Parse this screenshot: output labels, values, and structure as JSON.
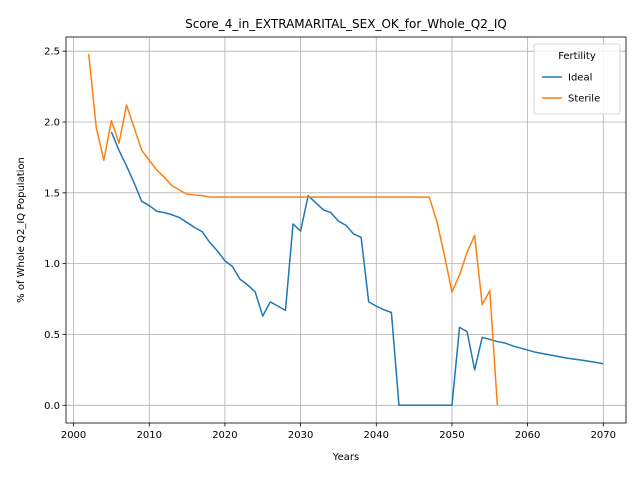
{
  "chart_data": {
    "type": "line",
    "title": "Score_4_in_EXTRAMARITAL_SEX_OK_for_Whole_Q2_IQ",
    "xlabel": "Years",
    "ylabel": "% of Whole Q2_IQ Population",
    "xlim": [
      1999,
      2073
    ],
    "ylim": [
      -0.125,
      2.6
    ],
    "xticks": [
      2000,
      2010,
      2020,
      2030,
      2040,
      2050,
      2060,
      2070
    ],
    "xtick_labels": [
      "2000",
      "2010",
      "2020",
      "2030",
      "2040",
      "2050",
      "2060",
      "2070"
    ],
    "yticks": [
      0.0,
      0.5,
      1.0,
      1.5,
      2.0,
      2.5
    ],
    "ytick_labels": [
      "0.0",
      "0.5",
      "1.0",
      "1.5",
      "2.0",
      "2.5"
    ],
    "grid": true,
    "legend": {
      "title": "Fertility",
      "position": "top-right"
    },
    "series": [
      {
        "name": "Ideal",
        "color": "#1f77b4",
        "x": [
          2005,
          2006,
          2007,
          2008,
          2009,
          2010,
          2011,
          2012,
          2013,
          2014,
          2015,
          2016,
          2017,
          2018,
          2019,
          2020,
          2021,
          2022,
          2023,
          2024,
          2025,
          2026,
          2027,
          2028,
          2029,
          2030,
          2031,
          2032,
          2033,
          2034,
          2035,
          2036,
          2037,
          2038,
          2039,
          2040,
          2041,
          2042,
          2043,
          2044,
          2045,
          2046,
          2047,
          2048,
          2049,
          2050,
          2051,
          2052,
          2053,
          2054,
          2055,
          2056,
          2057,
          2058,
          2059,
          2060,
          2061,
          2062,
          2063,
          2064,
          2065,
          2066,
          2067,
          2068,
          2069,
          2070
        ],
        "y": [
          1.93,
          1.8,
          1.69,
          1.57,
          1.44,
          1.41,
          1.37,
          1.36,
          1.345,
          1.325,
          1.29,
          1.255,
          1.225,
          1.15,
          1.09,
          1.02,
          0.98,
          0.89,
          0.85,
          0.8,
          0.63,
          0.73,
          0.7,
          0.67,
          1.28,
          1.23,
          1.48,
          1.43,
          1.38,
          1.36,
          1.3,
          1.27,
          1.21,
          1.185,
          0.73,
          0.7,
          0.675,
          0.655,
          0.0,
          0.0,
          0.0,
          0.0,
          0.0,
          0.0,
          0.0,
          0.0,
          0.55,
          0.52,
          0.25,
          0.48,
          0.465,
          0.45,
          0.44,
          0.42,
          0.405,
          0.39,
          0.375,
          0.365,
          0.355,
          0.345,
          0.335,
          0.327,
          0.32,
          0.312,
          0.303,
          0.293
        ]
      },
      {
        "name": "Sterile",
        "color": "#ff7f0e",
        "x": [
          2002,
          2003,
          2004,
          2005,
          2006,
          2007,
          2008,
          2009,
          2010,
          2011,
          2012,
          2013,
          2014,
          2015,
          2016,
          2017,
          2018,
          2019,
          2020,
          2025,
          2030,
          2035,
          2040,
          2045,
          2047,
          2048,
          2049,
          2050,
          2051,
          2052,
          2053,
          2054,
          2055,
          2056
        ],
        "y": [
          2.48,
          1.96,
          1.73,
          2.01,
          1.85,
          2.12,
          1.96,
          1.8,
          1.73,
          1.66,
          1.61,
          1.55,
          1.52,
          1.49,
          1.485,
          1.48,
          1.47,
          1.47,
          1.47,
          1.47,
          1.47,
          1.47,
          1.47,
          1.47,
          1.47,
          1.3,
          1.06,
          0.8,
          0.92,
          1.08,
          1.2,
          0.71,
          0.81,
          0.0
        ]
      }
    ]
  }
}
